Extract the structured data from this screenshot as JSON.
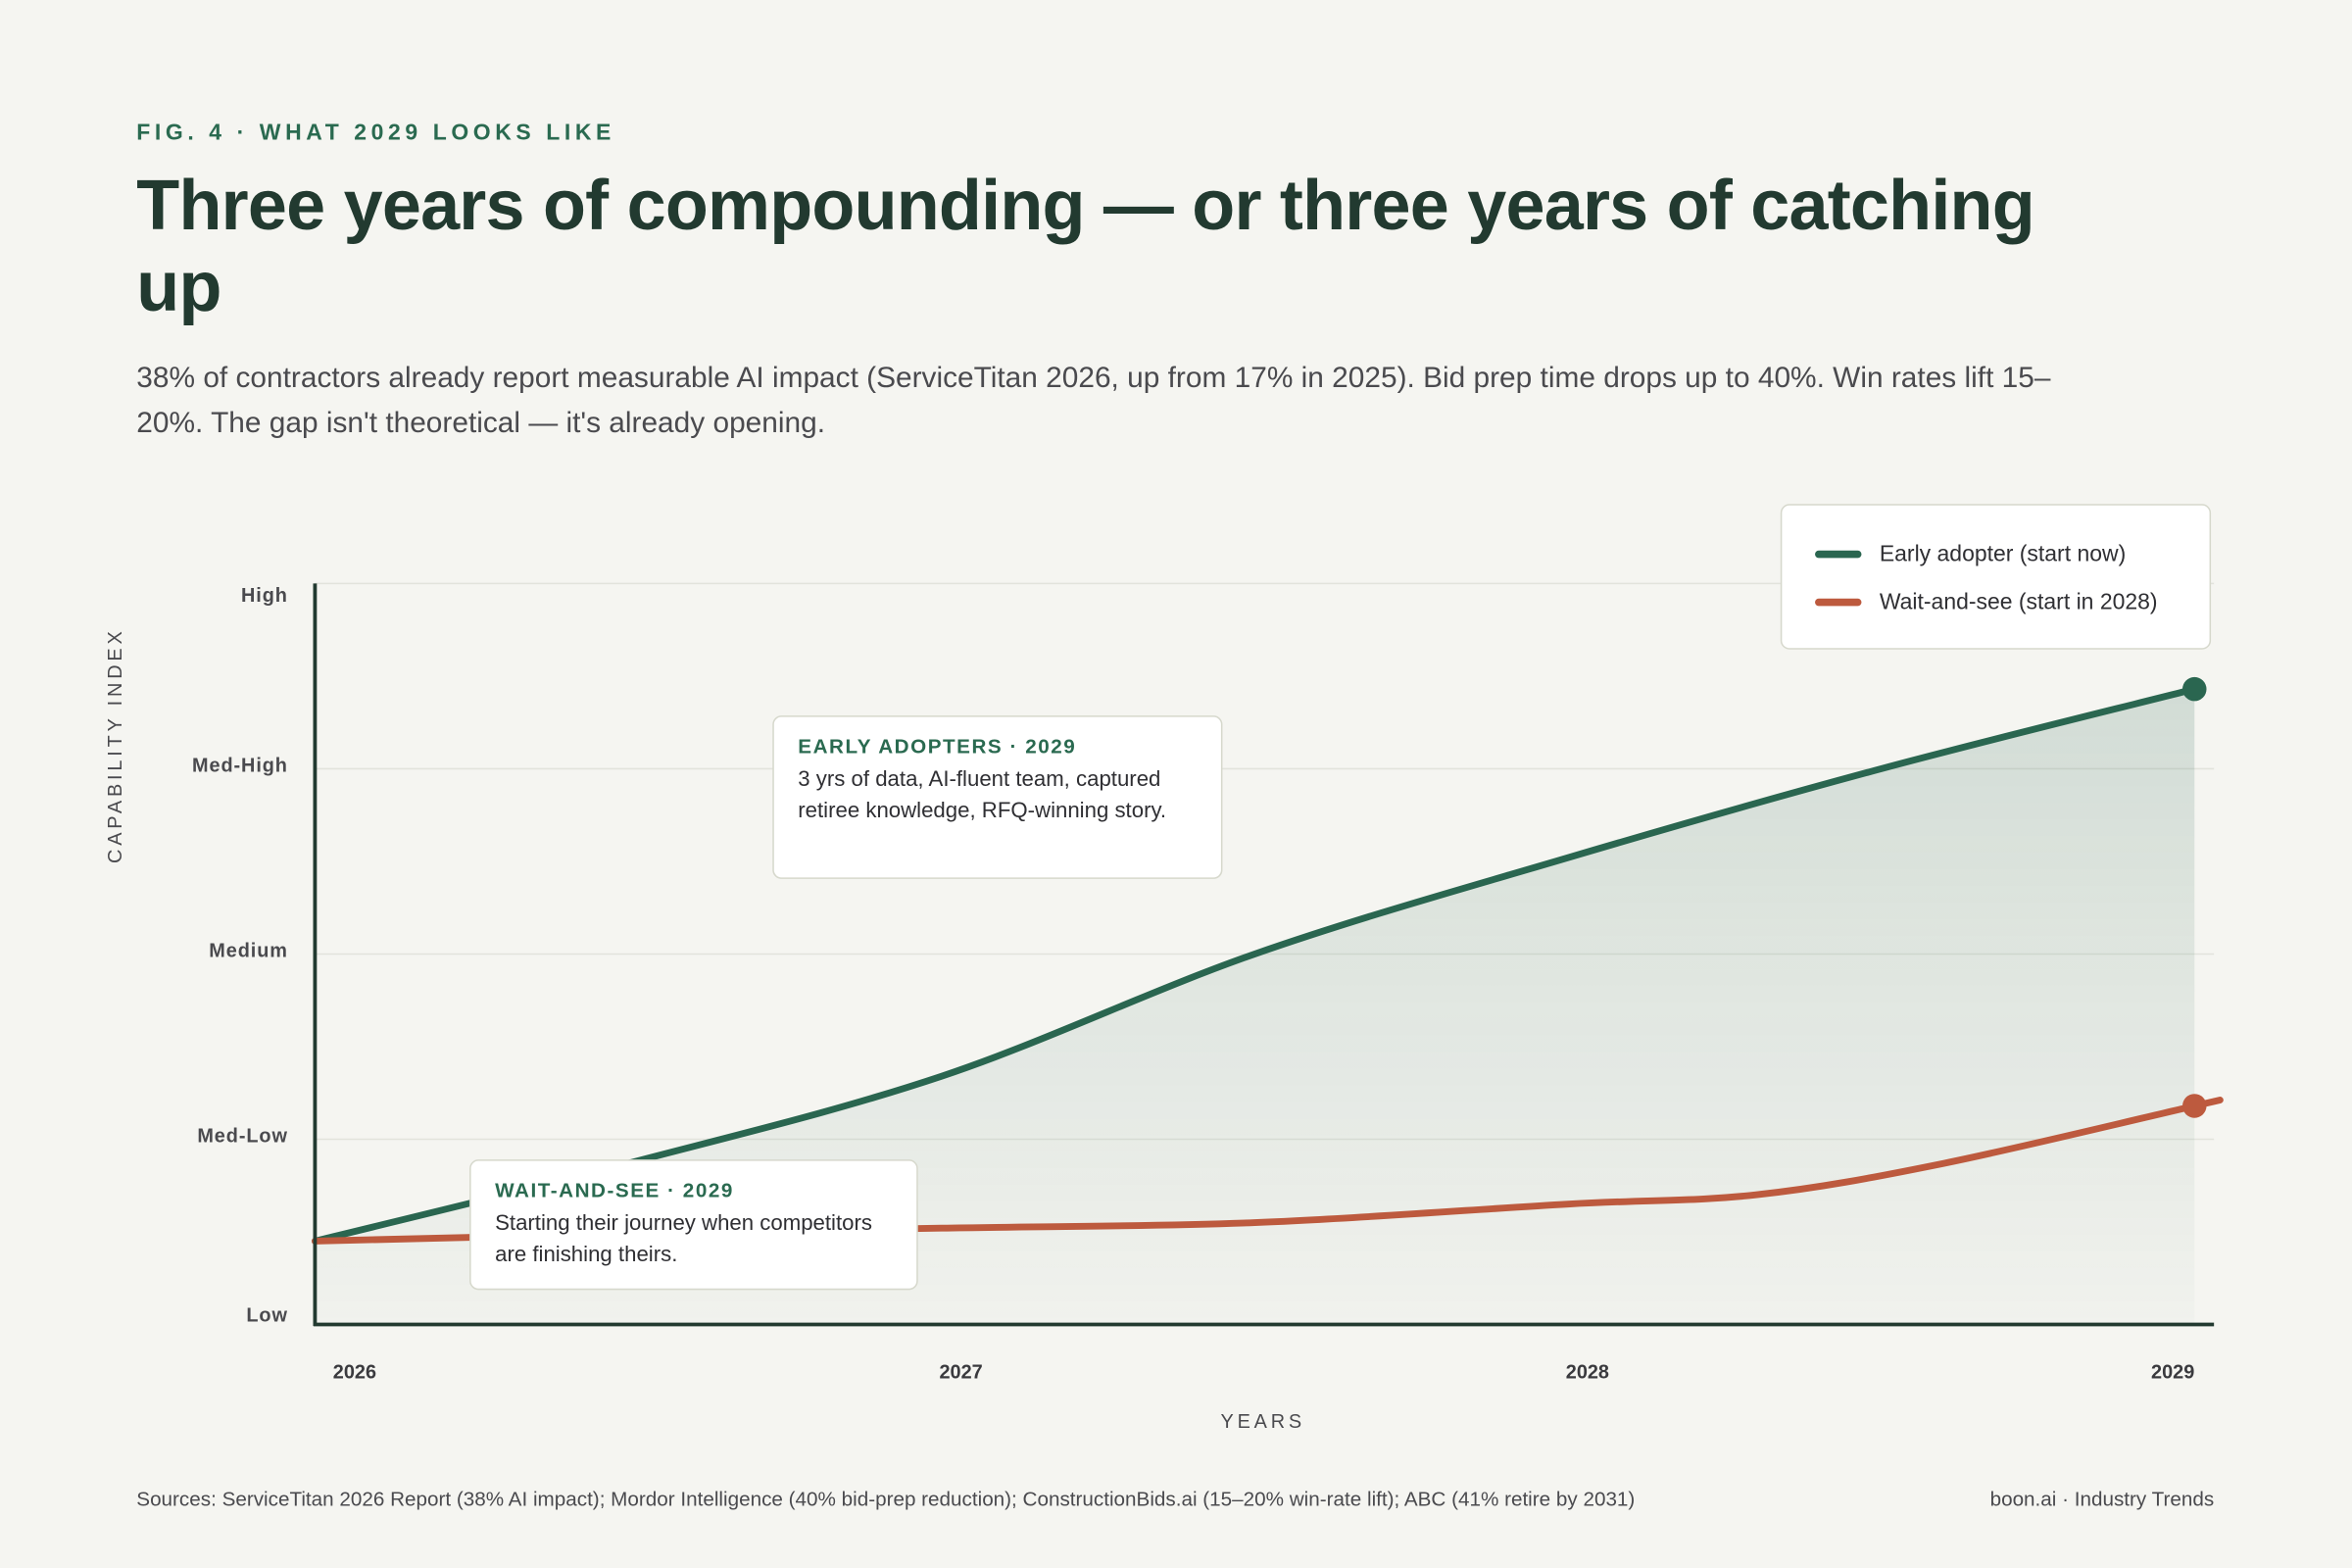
{
  "header": {
    "eyebrow": "FIG. 4 · WHAT 2029 LOOKS LIKE",
    "title": "Three years of compounding — or three years of catching up",
    "subtitle": "38% of contractors already report measurable AI impact (ServiceTitan 2026, up from 17% in 2025). Bid prep time drops up to 40%. Win rates lift 15–20%. The gap isn't theoretical — it's already opening."
  },
  "chart_data": {
    "type": "line",
    "xlabel": "YEARS",
    "ylabel": "CAPABILITY INDEX",
    "x_ticks": [
      "2026",
      "2027",
      "2028",
      "2029"
    ],
    "y_ticks": [
      "Low",
      "Med-Low",
      "Medium",
      "Med-High",
      "High"
    ],
    "xlim": [
      2026,
      2029
    ],
    "ylim": [
      0,
      4
    ],
    "grid": true,
    "legend_position": "top-right",
    "series": [
      {
        "name": "Early adopter (start now)",
        "color": "#2a6650",
        "area_fill": true,
        "x": [
          2026,
          2026.5,
          2027,
          2027.5,
          2028,
          2028.5,
          2029
        ],
        "y": [
          0.45,
          0.87,
          1.34,
          2.0,
          2.52,
          3.0,
          3.43
        ],
        "end_marker": true
      },
      {
        "name": "Wait-and-see (start in 2028)",
        "color": "#bd5a3e",
        "x": [
          2026,
          2026.5,
          2027,
          2027.5,
          2028,
          2028.3,
          2028.6,
          2029
        ],
        "y": [
          0.45,
          0.49,
          0.52,
          0.55,
          0.65,
          0.7,
          0.87,
          1.18
        ],
        "end_marker": true
      }
    ],
    "annotations": [
      {
        "title": "EARLY ADOPTERS · 2029",
        "text": "3 yrs of data, AI-fluent team, captured retiree knowledge, RFQ-winning story."
      },
      {
        "title": "WAIT-AND-SEE · 2029",
        "text": "Starting their journey when competitors are finishing theirs."
      }
    ]
  },
  "footer": {
    "sources": "Sources: ServiceTitan 2026 Report (38% AI impact); Mordor Intelligence (40% bid-prep reduction); ConstructionBids.ai (15–20% win-rate lift); ABC (41% retire by 2031)",
    "brand": "boon.ai · Industry Trends"
  }
}
